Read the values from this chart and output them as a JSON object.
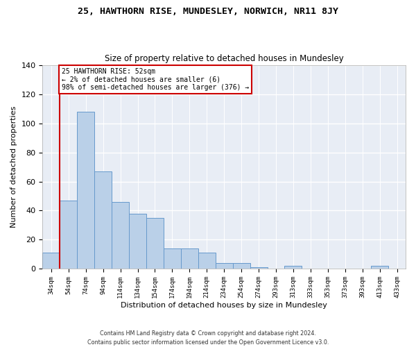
{
  "title": "25, HAWTHORN RISE, MUNDESLEY, NORWICH, NR11 8JY",
  "subtitle": "Size of property relative to detached houses in Mundesley",
  "xlabel": "Distribution of detached houses by size in Mundesley",
  "ylabel": "Number of detached properties",
  "bar_color": "#bad0e8",
  "bar_edge_color": "#6699cc",
  "bg_color": "#e8edf5",
  "grid_color": "#ffffff",
  "categories": [
    "34sqm",
    "54sqm",
    "74sqm",
    "94sqm",
    "114sqm",
    "134sqm",
    "154sqm",
    "174sqm",
    "194sqm",
    "214sqm",
    "234sqm",
    "254sqm",
    "274sqm",
    "293sqm",
    "313sqm",
    "333sqm",
    "353sqm",
    "373sqm",
    "393sqm",
    "413sqm",
    "433sqm"
  ],
  "values": [
    11,
    47,
    108,
    67,
    46,
    38,
    35,
    14,
    14,
    11,
    4,
    4,
    1,
    0,
    2,
    0,
    0,
    0,
    0,
    2,
    0
  ],
  "ylim": [
    0,
    140
  ],
  "yticks": [
    0,
    20,
    40,
    60,
    80,
    100,
    120,
    140
  ],
  "property_line_x": 0.5,
  "annotation_text": "25 HAWTHORN RISE: 52sqm\n← 2% of detached houses are smaller (6)\n98% of semi-detached houses are larger (376) →",
  "annotation_box_color": "#ffffff",
  "annotation_border_color": "#cc0000",
  "footer_line1": "Contains HM Land Registry data © Crown copyright and database right 2024.",
  "footer_line2": "Contains public sector information licensed under the Open Government Licence v3.0."
}
